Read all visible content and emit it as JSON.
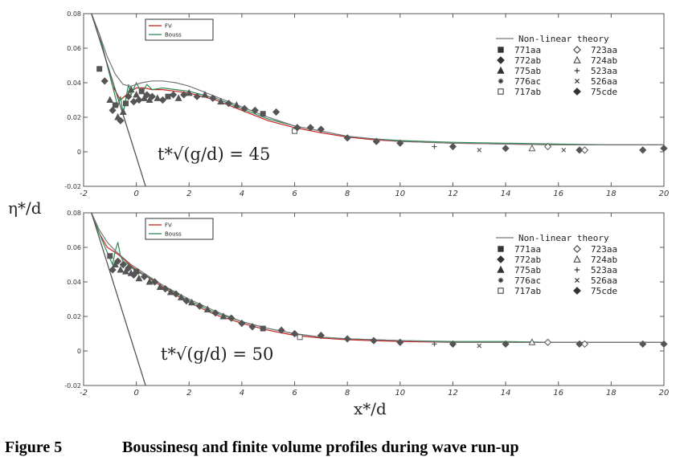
{
  "figure_caption": {
    "label": "Figure 5",
    "text": "Boussinesq and finite volume profiles during wave run-up"
  },
  "colors": {
    "fv": "#cc2020",
    "bouss": "#2e8b57",
    "theory": "#777777",
    "axis": "#555555",
    "markers": "#555555"
  },
  "chart_data": [
    {
      "type": "line",
      "annotation": "t*√(g/d) = 45",
      "ylabel": "η*/d",
      "xlim": [
        -2,
        20
      ],
      "ylim": [
        -0.02,
        0.08
      ],
      "xticks": [
        "-2",
        "0",
        "2",
        "4",
        "6",
        "8",
        "10",
        "12",
        "14",
        "16",
        "18",
        "20"
      ],
      "xtick_values": [
        -2,
        0,
        2,
        4,
        6,
        8,
        10,
        12,
        14,
        16,
        18,
        20
      ],
      "yticks": [
        "-0.02",
        "0",
        "0.02",
        "0.04",
        "0.06",
        "0.08"
      ],
      "ytick_values": [
        -0.02,
        0,
        0.02,
        0.04,
        0.06,
        0.08
      ],
      "box_legend": [
        "FV",
        "Bouss"
      ],
      "legend_header": "Non-linear theory",
      "legend_entries": [
        {
          "label": "771aa",
          "marker": "square"
        },
        {
          "label": "723aa",
          "marker": "open-diamond"
        },
        {
          "label": "772ab",
          "marker": "diamond"
        },
        {
          "label": "724ab",
          "marker": "open-triangle"
        },
        {
          "label": "775ab",
          "marker": "triangle"
        },
        {
          "label": "523aa",
          "marker": "plus"
        },
        {
          "label": "776ac",
          "marker": "star"
        },
        {
          "label": "526aa",
          "marker": "cross"
        },
        {
          "label": "717ab",
          "marker": "open-square"
        },
        {
          "label": "75cde",
          "marker": "diamond"
        }
      ],
      "series": [
        {
          "name": "FV",
          "color": "#cc2020",
          "x": [
            -1.7,
            -1.4,
            -1.1,
            -0.9,
            -0.6,
            -0.3,
            0,
            0.3,
            0.6,
            1,
            1.5,
            2,
            2.5,
            3,
            3.5,
            4,
            5,
            6,
            7,
            8,
            9,
            10,
            12,
            14,
            16,
            18,
            20
          ],
          "y": [
            0.08,
            0.068,
            0.05,
            0.038,
            0.03,
            0.034,
            0.037,
            0.037,
            0.036,
            0.036,
            0.035,
            0.034,
            0.032,
            0.03,
            0.027,
            0.024,
            0.018,
            0.014,
            0.011,
            0.0085,
            0.007,
            0.006,
            0.005,
            0.0045,
            0.004,
            0.004,
            0.004
          ]
        },
        {
          "name": "Bouss",
          "color": "#2e8b57",
          "x": [
            -1.7,
            -1.4,
            -1.1,
            -0.9,
            -0.7,
            -0.6,
            -0.5,
            -0.3,
            -0.2,
            0,
            0.2,
            0.4,
            0.6,
            1,
            1.5,
            2,
            2.5,
            3,
            3.5,
            4,
            5,
            6,
            7,
            8,
            9,
            10,
            12,
            14,
            16,
            18,
            20
          ],
          "y": [
            0.08,
            0.068,
            0.05,
            0.038,
            0.026,
            0.032,
            0.022,
            0.039,
            0.033,
            0.04,
            0.034,
            0.039,
            0.036,
            0.037,
            0.036,
            0.035,
            0.033,
            0.031,
            0.028,
            0.025,
            0.019,
            0.015,
            0.012,
            0.009,
            0.0075,
            0.0065,
            0.0055,
            0.005,
            0.0045,
            0.004,
            0.004
          ]
        },
        {
          "name": "Non-linear theory",
          "color": "#777777",
          "x": [
            -1.7,
            -1.4,
            -1.1,
            -0.8,
            -0.5,
            -0.2,
            0.2,
            0.6,
            1,
            1.5,
            2,
            2.5,
            3,
            3.5,
            4,
            5,
            6,
            7,
            8,
            10,
            12,
            14,
            16,
            18,
            20
          ],
          "y": [
            0.08,
            0.068,
            0.055,
            0.045,
            0.039,
            0.038,
            0.04,
            0.041,
            0.041,
            0.04,
            0.038,
            0.035,
            0.032,
            0.029,
            0.026,
            0.02,
            0.015,
            0.012,
            0.009,
            0.006,
            0.005,
            0.0045,
            0.004,
            0.004,
            0.004
          ]
        },
        {
          "name": "theory-line",
          "color": "#555555",
          "x": [
            -1.7,
            0.35
          ],
          "y": [
            0.08,
            -0.02
          ]
        }
      ],
      "points": [
        {
          "x": -1.4,
          "y": 0.048,
          "m": "square"
        },
        {
          "x": -1.2,
          "y": 0.041,
          "m": "diamond"
        },
        {
          "x": -1.0,
          "y": 0.03,
          "m": "triangle"
        },
        {
          "x": -0.9,
          "y": 0.024,
          "m": "diamond"
        },
        {
          "x": -0.8,
          "y": 0.027,
          "m": "square"
        },
        {
          "x": -0.7,
          "y": 0.02,
          "m": "triangle"
        },
        {
          "x": -0.6,
          "y": 0.018,
          "m": "diamond"
        },
        {
          "x": -0.5,
          "y": 0.023,
          "m": "triangle"
        },
        {
          "x": -0.4,
          "y": 0.028,
          "m": "square"
        },
        {
          "x": -0.3,
          "y": 0.032,
          "m": "diamond"
        },
        {
          "x": -0.2,
          "y": 0.036,
          "m": "triangle"
        },
        {
          "x": -0.1,
          "y": 0.029,
          "m": "diamond"
        },
        {
          "x": 0,
          "y": 0.033,
          "m": "triangle"
        },
        {
          "x": 0.1,
          "y": 0.03,
          "m": "diamond"
        },
        {
          "x": 0.2,
          "y": 0.035,
          "m": "square"
        },
        {
          "x": 0.3,
          "y": 0.031,
          "m": "triangle"
        },
        {
          "x": 0.4,
          "y": 0.033,
          "m": "diamond"
        },
        {
          "x": 0.5,
          "y": 0.03,
          "m": "triangle"
        },
        {
          "x": 0.6,
          "y": 0.032,
          "m": "diamond"
        },
        {
          "x": 0.8,
          "y": 0.031,
          "m": "triangle"
        },
        {
          "x": 1.0,
          "y": 0.03,
          "m": "diamond"
        },
        {
          "x": 1.2,
          "y": 0.032,
          "m": "square"
        },
        {
          "x": 1.4,
          "y": 0.033,
          "m": "diamond"
        },
        {
          "x": 1.6,
          "y": 0.031,
          "m": "triangle"
        },
        {
          "x": 1.8,
          "y": 0.033,
          "m": "diamond"
        },
        {
          "x": 2.0,
          "y": 0.034,
          "m": "triangle"
        },
        {
          "x": 2.3,
          "y": 0.032,
          "m": "diamond"
        },
        {
          "x": 2.6,
          "y": 0.033,
          "m": "triangle"
        },
        {
          "x": 2.9,
          "y": 0.031,
          "m": "diamond"
        },
        {
          "x": 3.2,
          "y": 0.029,
          "m": "triangle"
        },
        {
          "x": 3.5,
          "y": 0.028,
          "m": "diamond"
        },
        {
          "x": 3.8,
          "y": 0.027,
          "m": "triangle"
        },
        {
          "x": 4.1,
          "y": 0.025,
          "m": "diamond"
        },
        {
          "x": 4.5,
          "y": 0.024,
          "m": "diamond"
        },
        {
          "x": 4.8,
          "y": 0.022,
          "m": "square"
        },
        {
          "x": 5.3,
          "y": 0.023,
          "m": "diamond"
        },
        {
          "x": 6.0,
          "y": 0.012,
          "m": "open-square"
        },
        {
          "x": 6.1,
          "y": 0.014,
          "m": "diamond"
        },
        {
          "x": 6.6,
          "y": 0.014,
          "m": "diamond"
        },
        {
          "x": 7.0,
          "y": 0.013,
          "m": "diamond"
        },
        {
          "x": 8.0,
          "y": 0.008,
          "m": "diamond"
        },
        {
          "x": 9.1,
          "y": 0.006,
          "m": "diamond"
        },
        {
          "x": 10.0,
          "y": 0.005,
          "m": "diamond"
        },
        {
          "x": 11.3,
          "y": 0.003,
          "m": "plus"
        },
        {
          "x": 12.0,
          "y": 0.003,
          "m": "diamond"
        },
        {
          "x": 13.0,
          "y": 0.001,
          "m": "cross"
        },
        {
          "x": 14.0,
          "y": 0.002,
          "m": "diamond"
        },
        {
          "x": 15.0,
          "y": 0.002,
          "m": "open-triangle"
        },
        {
          "x": 15.6,
          "y": 0.003,
          "m": "open-diamond"
        },
        {
          "x": 16.2,
          "y": 0.001,
          "m": "cross"
        },
        {
          "x": 16.8,
          "y": 0.001,
          "m": "diamond"
        },
        {
          "x": 17.0,
          "y": 0.001,
          "m": "open-diamond"
        },
        {
          "x": 19.2,
          "y": 0.001,
          "m": "diamond"
        },
        {
          "x": 20.0,
          "y": 0.002,
          "m": "diamond"
        }
      ]
    },
    {
      "type": "line",
      "annotation": "t*√(g/d) = 50",
      "xlabel": "x*/d",
      "xlim": [
        -2,
        20
      ],
      "ylim": [
        -0.02,
        0.08
      ],
      "xticks": [
        "-2",
        "0",
        "2",
        "4",
        "6",
        "8",
        "10",
        "12",
        "14",
        "16",
        "18",
        "20"
      ],
      "xtick_values": [
        -2,
        0,
        2,
        4,
        6,
        8,
        10,
        12,
        14,
        16,
        18,
        20
      ],
      "yticks": [
        "-0.02",
        "0",
        "0.02",
        "0.04",
        "0.06",
        "0.08"
      ],
      "ytick_values": [
        -0.02,
        0,
        0.02,
        0.04,
        0.06,
        0.08
      ],
      "box_legend": [
        "FV",
        "Bouss"
      ],
      "legend_header": "Non-linear theory",
      "legend_entries": [
        {
          "label": "771aa",
          "marker": "square"
        },
        {
          "label": "723aa",
          "marker": "open-diamond"
        },
        {
          "label": "772ab",
          "marker": "diamond"
        },
        {
          "label": "724ab",
          "marker": "open-triangle"
        },
        {
          "label": "775ab",
          "marker": "triangle"
        },
        {
          "label": "523aa",
          "marker": "plus"
        },
        {
          "label": "776ac",
          "marker": "star"
        },
        {
          "label": "526aa",
          "marker": "cross"
        },
        {
          "label": "717ab",
          "marker": "open-square"
        },
        {
          "label": "75cde",
          "marker": "diamond"
        }
      ],
      "series": [
        {
          "name": "FV",
          "color": "#cc2020",
          "x": [
            -1.7,
            -1.4,
            -1.1,
            -0.9,
            -0.7,
            -0.4,
            -0.1,
            0.3,
            0.8,
            1.3,
            2,
            3,
            4,
            5,
            6,
            7,
            8,
            9,
            10,
            12,
            14,
            16,
            18,
            20
          ],
          "y": [
            0.08,
            0.068,
            0.06,
            0.058,
            0.056,
            0.052,
            0.048,
            0.044,
            0.039,
            0.034,
            0.028,
            0.021,
            0.016,
            0.012,
            0.009,
            0.0075,
            0.0065,
            0.006,
            0.0055,
            0.005,
            0.005,
            0.005,
            0.005,
            0.005
          ]
        },
        {
          "name": "Bouss",
          "color": "#2e8b57",
          "x": [
            -1.7,
            -1.4,
            -1.1,
            -0.9,
            -0.8,
            -0.7,
            -0.6,
            -0.5,
            -0.3,
            0,
            0.3,
            0.8,
            1.3,
            2,
            3,
            4,
            5,
            6,
            7,
            8,
            9,
            10,
            12,
            14,
            16,
            18,
            20
          ],
          "y": [
            0.08,
            0.068,
            0.057,
            0.05,
            0.058,
            0.063,
            0.055,
            0.052,
            0.05,
            0.046,
            0.044,
            0.04,
            0.035,
            0.029,
            0.022,
            0.017,
            0.013,
            0.01,
            0.008,
            0.007,
            0.0065,
            0.006,
            0.0055,
            0.0055,
            0.005,
            0.005,
            0.005
          ]
        },
        {
          "name": "Non-linear theory",
          "color": "#777777",
          "x": [
            -1.7,
            -1.4,
            -1.1,
            -0.8,
            -0.5,
            -0.2,
            0.2,
            0.6,
            1,
            1.5,
            2,
            3,
            4,
            5,
            6,
            7,
            8,
            10,
            12,
            14,
            16,
            18,
            20
          ],
          "y": [
            0.08,
            0.07,
            0.063,
            0.058,
            0.054,
            0.05,
            0.046,
            0.042,
            0.038,
            0.034,
            0.03,
            0.023,
            0.017,
            0.013,
            0.01,
            0.008,
            0.007,
            0.006,
            0.005,
            0.005,
            0.005,
            0.005,
            0.005
          ]
        },
        {
          "name": "theory-line",
          "color": "#555555",
          "x": [
            -1.7,
            0.35
          ],
          "y": [
            0.08,
            -0.02
          ]
        }
      ],
      "points": [
        {
          "x": -1.0,
          "y": 0.055,
          "m": "square"
        },
        {
          "x": -0.9,
          "y": 0.047,
          "m": "diamond"
        },
        {
          "x": -0.8,
          "y": 0.05,
          "m": "triangle"
        },
        {
          "x": -0.7,
          "y": 0.052,
          "m": "diamond"
        },
        {
          "x": -0.6,
          "y": 0.047,
          "m": "triangle"
        },
        {
          "x": -0.5,
          "y": 0.05,
          "m": "diamond"
        },
        {
          "x": -0.4,
          "y": 0.046,
          "m": "triangle"
        },
        {
          "x": -0.3,
          "y": 0.048,
          "m": "diamond"
        },
        {
          "x": -0.2,
          "y": 0.045,
          "m": "triangle"
        },
        {
          "x": -0.1,
          "y": 0.044,
          "m": "diamond"
        },
        {
          "x": 0,
          "y": 0.046,
          "m": "square"
        },
        {
          "x": 0.1,
          "y": 0.042,
          "m": "triangle"
        },
        {
          "x": 0.3,
          "y": 0.043,
          "m": "diamond"
        },
        {
          "x": 0.5,
          "y": 0.04,
          "m": "triangle"
        },
        {
          "x": 0.7,
          "y": 0.04,
          "m": "diamond"
        },
        {
          "x": 0.9,
          "y": 0.037,
          "m": "triangle"
        },
        {
          "x": 1.1,
          "y": 0.036,
          "m": "diamond"
        },
        {
          "x": 1.3,
          "y": 0.034,
          "m": "triangle"
        },
        {
          "x": 1.5,
          "y": 0.033,
          "m": "diamond"
        },
        {
          "x": 1.7,
          "y": 0.031,
          "m": "triangle"
        },
        {
          "x": 1.9,
          "y": 0.029,
          "m": "diamond"
        },
        {
          "x": 2.1,
          "y": 0.028,
          "m": "triangle"
        },
        {
          "x": 2.4,
          "y": 0.026,
          "m": "diamond"
        },
        {
          "x": 2.7,
          "y": 0.024,
          "m": "triangle"
        },
        {
          "x": 3.0,
          "y": 0.022,
          "m": "diamond"
        },
        {
          "x": 3.3,
          "y": 0.02,
          "m": "triangle"
        },
        {
          "x": 3.6,
          "y": 0.019,
          "m": "diamond"
        },
        {
          "x": 4.0,
          "y": 0.016,
          "m": "diamond"
        },
        {
          "x": 4.4,
          "y": 0.014,
          "m": "diamond"
        },
        {
          "x": 4.8,
          "y": 0.013,
          "m": "square"
        },
        {
          "x": 5.5,
          "y": 0.012,
          "m": "diamond"
        },
        {
          "x": 6.0,
          "y": 0.01,
          "m": "diamond"
        },
        {
          "x": 6.2,
          "y": 0.008,
          "m": "open-square"
        },
        {
          "x": 7.0,
          "y": 0.009,
          "m": "diamond"
        },
        {
          "x": 8.0,
          "y": 0.007,
          "m": "diamond"
        },
        {
          "x": 9.0,
          "y": 0.006,
          "m": "diamond"
        },
        {
          "x": 10.0,
          "y": 0.005,
          "m": "diamond"
        },
        {
          "x": 11.3,
          "y": 0.004,
          "m": "plus"
        },
        {
          "x": 12.0,
          "y": 0.004,
          "m": "diamond"
        },
        {
          "x": 13.0,
          "y": 0.003,
          "m": "cross"
        },
        {
          "x": 14.0,
          "y": 0.004,
          "m": "diamond"
        },
        {
          "x": 15.0,
          "y": 0.005,
          "m": "open-triangle"
        },
        {
          "x": 15.6,
          "y": 0.005,
          "m": "open-diamond"
        },
        {
          "x": 16.8,
          "y": 0.004,
          "m": "diamond"
        },
        {
          "x": 17.0,
          "y": 0.004,
          "m": "open-diamond"
        },
        {
          "x": 19.2,
          "y": 0.004,
          "m": "diamond"
        },
        {
          "x": 20.0,
          "y": 0.004,
          "m": "diamond"
        }
      ]
    }
  ]
}
